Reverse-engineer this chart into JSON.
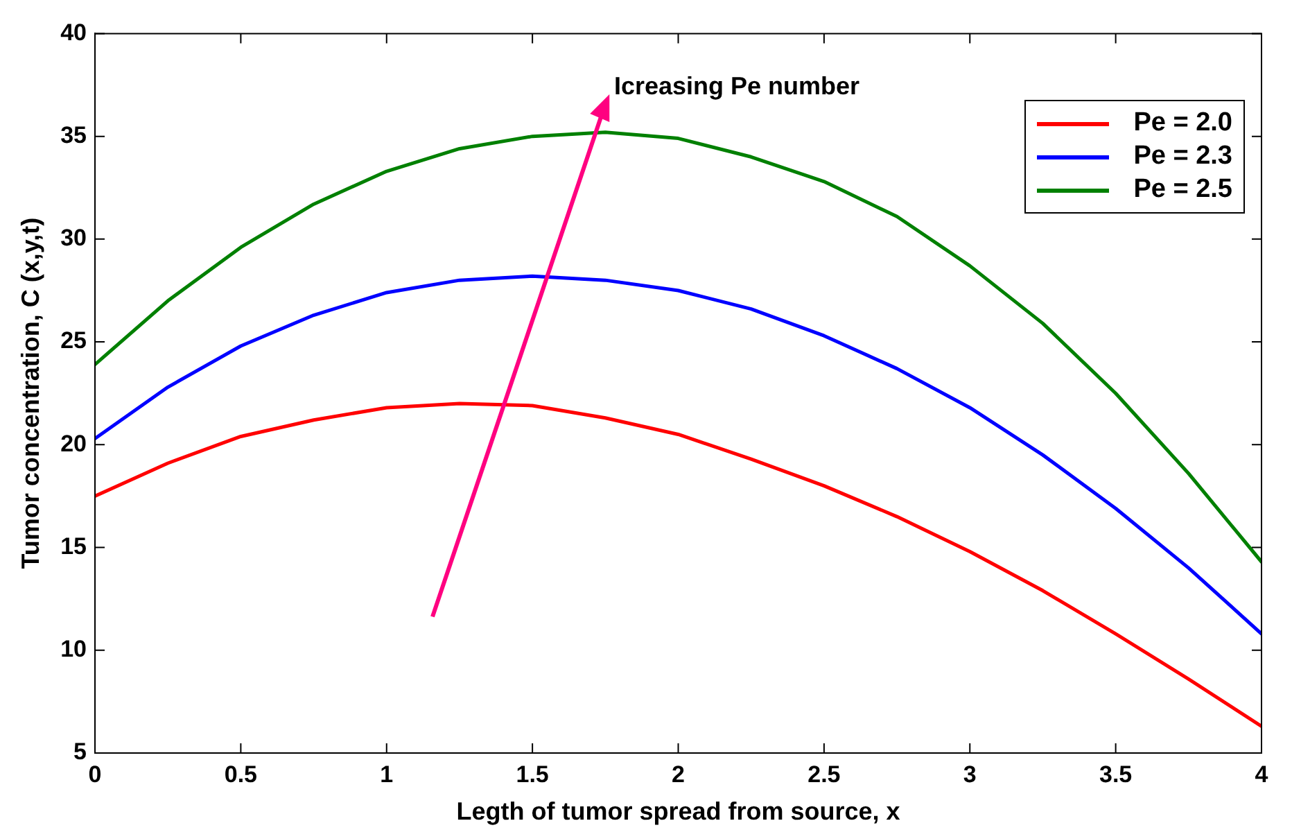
{
  "chart_data": {
    "type": "line",
    "xlabel": "Legth of tumor spread from source, x",
    "ylabel": "Tumor concentration, C (x,y,t)",
    "x": [
      0,
      0.25,
      0.5,
      0.75,
      1,
      1.25,
      1.5,
      1.75,
      2,
      2.25,
      2.5,
      2.75,
      3,
      3.25,
      3.5,
      3.75,
      4
    ],
    "series": [
      {
        "name": "Pe = 2.0",
        "color": "#ff0000",
        "values": [
          17.5,
          19.1,
          20.4,
          21.2,
          21.8,
          22.0,
          21.9,
          21.3,
          20.5,
          19.3,
          18.0,
          16.5,
          14.8,
          12.9,
          10.8,
          8.6,
          6.3
        ]
      },
      {
        "name": "Pe = 2.3",
        "color": "#0000ff",
        "values": [
          20.3,
          22.8,
          24.8,
          26.3,
          27.4,
          28.0,
          28.2,
          28.0,
          27.5,
          26.6,
          25.3,
          23.7,
          21.8,
          19.5,
          16.9,
          14.0,
          10.8
        ]
      },
      {
        "name": "Pe = 2.5",
        "color": "#008000",
        "values": [
          23.9,
          27.0,
          29.6,
          31.7,
          33.3,
          34.4,
          35.0,
          35.2,
          34.9,
          34.0,
          32.8,
          31.1,
          28.7,
          25.9,
          22.5,
          18.6,
          14.3
        ]
      }
    ],
    "xlim": [
      0,
      4
    ],
    "xticks": [
      0,
      0.5,
      1,
      1.5,
      2,
      2.5,
      3,
      3.5,
      4
    ],
    "ylim": [
      5,
      40
    ],
    "yticks": [
      5,
      10,
      15,
      20,
      25,
      30,
      35,
      40
    ],
    "annotations": [
      "Icreasing Pe number"
    ],
    "legend": "top right",
    "grid": false,
    "marker": "none",
    "line_style": "solid"
  }
}
